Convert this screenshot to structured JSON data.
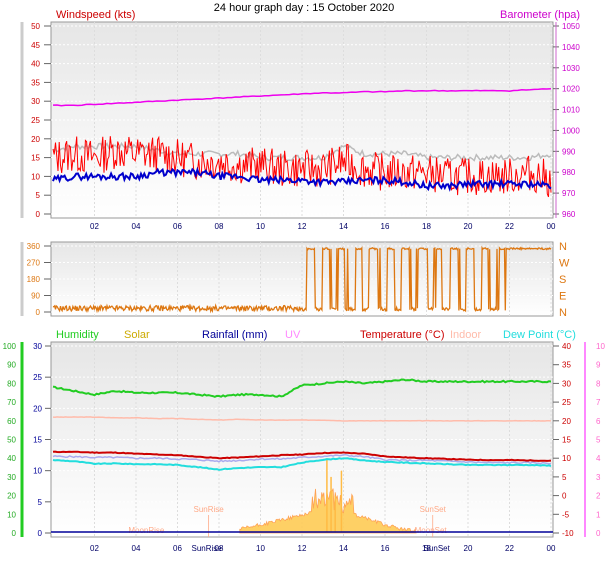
{
  "title": "24 hour graph day : 15 October 2020",
  "colors": {
    "windspeed": "#ff0000",
    "gust_avg": "#bbbbbb",
    "avg_wind": "#0000cc",
    "barometer": "#ee00ee",
    "direction": "#dd7711",
    "humidity": "#22cc22",
    "solar": "#ccaa00",
    "rainfall": "#000099",
    "uv": "#ff88ff",
    "temperature": "#cc0000",
    "indoor": "#ffbbaa",
    "dewpoint": "#22dddd",
    "heat": "#ffaa66",
    "lavender": "#aaaaee"
  },
  "chart_data": [
    {
      "type": "line",
      "left_label": "Windspeed (kts)",
      "right_label": "Barometer (hpa)",
      "x_ticks": [
        "02",
        "04",
        "06",
        "08",
        "10",
        "12",
        "14",
        "16",
        "18",
        "20",
        "22",
        "00"
      ],
      "y_left_ticks": [
        "0",
        "5",
        "10",
        "15",
        "20",
        "25",
        "30",
        "35",
        "40",
        "45",
        "50"
      ],
      "y_right_ticks": [
        "960",
        "970",
        "980",
        "990",
        "1000",
        "1010",
        "1020",
        "1030",
        "1040",
        "1050"
      ],
      "ylim_left": [
        0,
        50
      ],
      "ylim_right": [
        960,
        1050
      ],
      "hours": [
        0,
        1,
        2,
        3,
        4,
        5,
        6,
        7,
        8,
        9,
        10,
        11,
        12,
        13,
        14,
        15,
        16,
        17,
        18,
        19,
        20,
        21,
        22,
        23,
        24
      ],
      "series": [
        {
          "key": "wind",
          "values": [
            15,
            16,
            15,
            17,
            16,
            16,
            15,
            14,
            14,
            13,
            13,
            12,
            12,
            12,
            14,
            12,
            11,
            11,
            11,
            10,
            10,
            10,
            10,
            11,
            9
          ]
        },
        {
          "key": "gust",
          "values": [
            17,
            18,
            18,
            18,
            18,
            17,
            16,
            16,
            16,
            16,
            15,
            15,
            15,
            15,
            18,
            16,
            16,
            16,
            15,
            15,
            15,
            15,
            15,
            15,
            16
          ]
        },
        {
          "key": "avg",
          "values": [
            9,
            10,
            10,
            10,
            10,
            11,
            11,
            11,
            10,
            10,
            9,
            9,
            9,
            8.5,
            8.5,
            9,
            9,
            8.5,
            7.5,
            7.5,
            8,
            8,
            8,
            8,
            7.5
          ]
        },
        {
          "key": "baro",
          "values": [
            1012,
            1012,
            1012.5,
            1013,
            1013.5,
            1014,
            1014.5,
            1015,
            1015.5,
            1016,
            1016.5,
            1017,
            1017.5,
            1018,
            1018,
            1018.5,
            1018.5,
            1019,
            1019,
            1019,
            1019,
            1019,
            1019,
            1019.5,
            1020
          ]
        }
      ]
    },
    {
      "type": "scatter",
      "right_label_letters": [
        "N",
        "W",
        "S",
        "E",
        "N"
      ],
      "x_ticks": [
        "02",
        "04",
        "06",
        "08",
        "10",
        "12",
        "14",
        "16",
        "18",
        "20",
        "22",
        "00"
      ],
      "y_left_ticks": [
        "0",
        "90",
        "180",
        "270",
        "360"
      ],
      "ylim": [
        0,
        360
      ],
      "segments": [
        {
          "from": 0,
          "to": 12,
          "deg": 20
        },
        {
          "from": 12,
          "to": 14,
          "deg": 340
        },
        {
          "from": 14,
          "to": 21.8,
          "deg": 345
        },
        {
          "from": 22,
          "to": 24,
          "deg": 345
        }
      ]
    },
    {
      "type": "line",
      "legend": [
        "Humidity",
        "Solar",
        "Rainfall (mm)",
        "UV",
        "Temperature (°C)",
        "Indoor",
        "Dew Point (°C)"
      ],
      "x_ticks": [
        "02",
        "04",
        "06",
        "08",
        "10",
        "12",
        "14",
        "16",
        "18",
        "20",
        "22",
        "00"
      ],
      "y_far_left_ticks": [
        "0",
        "10",
        "20",
        "30",
        "40",
        "50",
        "60",
        "70",
        "80",
        "90",
        "100"
      ],
      "y_left_ticks": [
        "0",
        "5",
        "10",
        "15",
        "20",
        "25",
        "30"
      ],
      "y_right_ticks": [
        "-10",
        "-5",
        "0",
        "5",
        "10",
        "15",
        "20",
        "25",
        "30",
        "35",
        "40"
      ],
      "y_far_right_ticks": [
        "0",
        "1",
        "2",
        "3",
        "4",
        "5",
        "6",
        "7",
        "8",
        "9",
        "10"
      ],
      "annotations": [
        "SunRise",
        "SunSet",
        "MoonRise",
        "MoonSet"
      ],
      "axis_labels": [
        "SunRise",
        "SunSet"
      ],
      "hours": [
        0,
        1,
        2,
        3,
        4,
        5,
        6,
        7,
        8,
        9,
        10,
        11,
        12,
        13,
        14,
        15,
        16,
        17,
        18,
        19,
        20,
        21,
        22,
        23,
        24
      ],
      "series": [
        {
          "key": "humidity",
          "values": [
            78,
            76,
            74,
            76,
            75,
            75,
            75,
            74,
            73,
            74,
            74,
            73,
            79,
            80,
            81,
            80,
            81,
            82,
            81,
            81,
            81,
            81,
            81,
            81,
            81
          ]
        },
        {
          "key": "temperature",
          "values": [
            11.7,
            11.7,
            11.5,
            11.5,
            11.2,
            11.0,
            10.8,
            10.4,
            10.0,
            10.2,
            10.5,
            10.8,
            11.0,
            11.4,
            11.5,
            11.2,
            10.5,
            10.2,
            10.0,
            9.8,
            9.6,
            9.5,
            9.5,
            9.4,
            9.3
          ]
        },
        {
          "key": "indoor",
          "values": [
            21,
            21,
            21,
            20.8,
            20.8,
            20.6,
            20.6,
            20.4,
            20.2,
            20.4,
            20.2,
            20.2,
            20.2,
            20.2,
            20.0,
            20.0,
            20.0,
            20.0,
            20.0,
            20.0,
            20.0,
            20.0,
            20.0,
            20.0,
            20.0
          ]
        },
        {
          "key": "dewpoint",
          "values": [
            9.5,
            9.2,
            8.5,
            8.6,
            8.4,
            8.4,
            8.2,
            7.6,
            7.0,
            7.4,
            7.6,
            7.6,
            8.8,
            9.6,
            10.0,
            9.4,
            9.0,
            8.8,
            8.6,
            8.4,
            8.2,
            8.2,
            8.2,
            8.2,
            8.0
          ]
        },
        {
          "key": "lavender",
          "values": [
            10.5,
            10.4,
            10.2,
            10.2,
            10.0,
            10.0,
            9.8,
            9.6,
            9.2,
            9.4,
            9.8,
            9.8,
            10.2,
            10.5,
            10.8,
            10.4,
            9.6,
            9.4,
            9.4,
            9.2,
            9.0,
            8.8,
            8.8,
            8.8,
            8.6
          ]
        },
        {
          "key": "solar",
          "values": [
            0,
            0,
            0,
            0,
            0,
            0,
            0,
            0,
            0,
            0.3,
            1.0,
            1.8,
            2.6,
            3.6,
            3.0,
            2.2,
            1.0,
            0.2,
            0,
            0,
            0,
            0,
            0,
            0,
            0
          ]
        }
      ]
    }
  ]
}
